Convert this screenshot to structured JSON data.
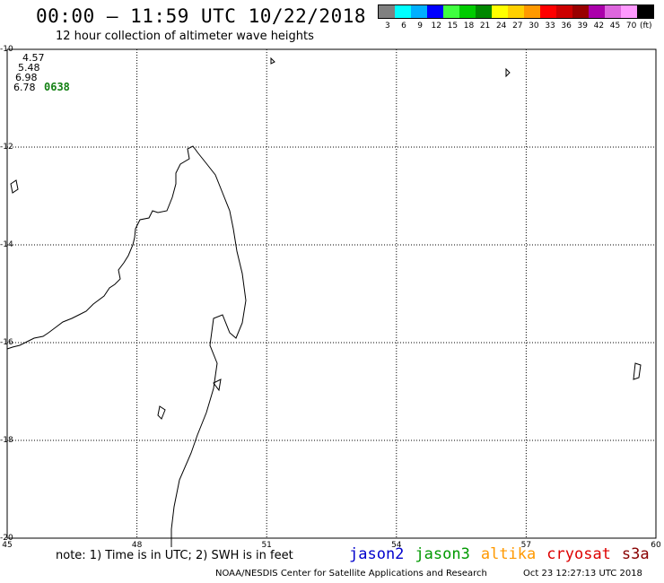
{
  "header": {
    "title": "00:00 – 11:59 UTC 10/22/2018",
    "subtitle": "12 hour collection of altimeter wave heights"
  },
  "legend": {
    "unit": "(ft)",
    "bins": [
      {
        "label": "3",
        "color": "#808080"
      },
      {
        "label": "6",
        "color": "#00ffff"
      },
      {
        "label": "9",
        "color": "#00b0ff"
      },
      {
        "label": "12",
        "color": "#0000ff"
      },
      {
        "label": "15",
        "color": "#40ff40"
      },
      {
        "label": "18",
        "color": "#00cc00"
      },
      {
        "label": "21",
        "color": "#008800"
      },
      {
        "label": "24",
        "color": "#ffff00"
      },
      {
        "label": "27",
        "color": "#ffd000"
      },
      {
        "label": "30",
        "color": "#ff9900"
      },
      {
        "label": "33",
        "color": "#ff0000"
      },
      {
        "label": "36",
        "color": "#cc0000"
      },
      {
        "label": "39",
        "color": "#990000"
      },
      {
        "label": "42",
        "color": "#aa00aa"
      },
      {
        "label": "45",
        "color": "#dd66dd"
      },
      {
        "label": "70",
        "color": "#ff99ff"
      },
      {
        "label": "",
        "color": "#000000"
      }
    ]
  },
  "map": {
    "lon_range": [
      45,
      60
    ],
    "lat_range": [
      -20,
      -10
    ],
    "lon_ticks": [
      "45",
      "48",
      "51",
      "54",
      "57",
      "60"
    ],
    "lat_ticks": [
      "-10",
      "-12",
      "-14",
      "-16",
      "-18",
      "-20"
    ],
    "grid": true,
    "region": "Madagascar and Mozambique Channel"
  },
  "wave_heights": [
    {
      "text": "4.57",
      "color": "#00e0e0"
    },
    {
      "text": "5.48",
      "color": "#00e0e0"
    },
    {
      "text": "6.98",
      "color": "#00e0e0"
    },
    {
      "text": "6.78",
      "color": "#00e0e0"
    }
  ],
  "pass_time": "0638",
  "note": "note: 1) Time is in UTC; 2) SWH is in feet",
  "satellites": [
    {
      "name": "jason2",
      "color": "#0000cc"
    },
    {
      "name": "jason3",
      "color": "#009900"
    },
    {
      "name": "altika",
      "color": "#ff9900"
    },
    {
      "name": "cryosat",
      "color": "#dd0000"
    },
    {
      "name": "s3a",
      "color": "#880000"
    }
  ],
  "footer": {
    "credit": "NOAA/NESDIS Center for Satellite Applications and Research",
    "timestamp": "Oct 23 12:27:13 UTC 2018"
  }
}
